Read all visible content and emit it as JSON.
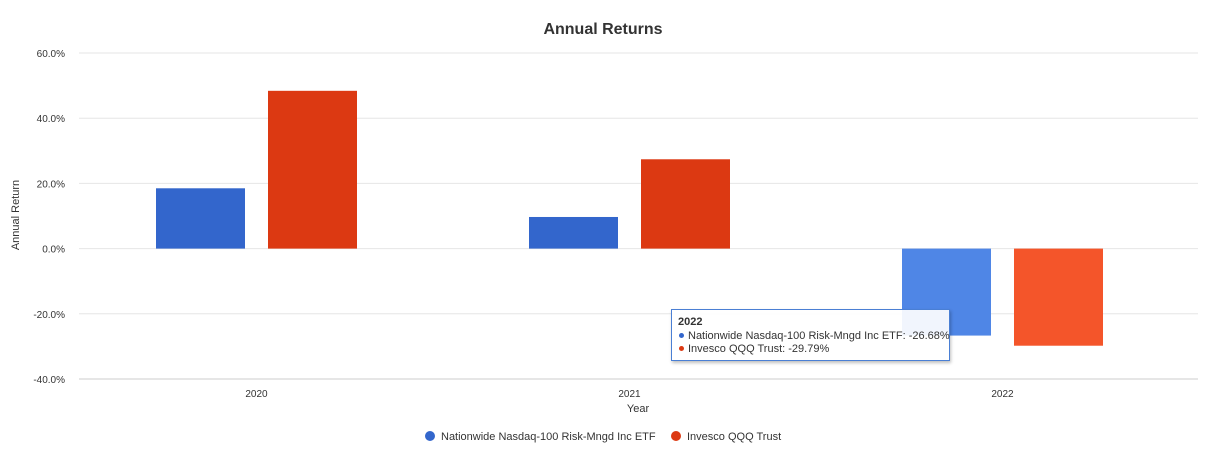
{
  "chart_data": {
    "type": "bar",
    "title": "Annual Returns",
    "xlabel": "Year",
    "ylabel": "Annual Return",
    "categories": [
      "2020",
      "2021",
      "2022"
    ],
    "ylim": [
      -40,
      60
    ],
    "yticks": [
      60,
      40,
      20,
      0,
      -20,
      -40
    ],
    "ytick_labels": [
      "60.0%",
      "40.0%",
      "20.0%",
      "0.0%",
      "-20.0%",
      "-40.0%"
    ],
    "grid": true,
    "legend_position": "bottom-center",
    "series": [
      {
        "name": "Nationwide Nasdaq-100 Risk-Mngd Inc ETF",
        "values": [
          18.5,
          9.7,
          -26.68
        ],
        "color": "#3366cc",
        "highlight_color": "#4f86e6"
      },
      {
        "name": "Invesco QQQ Trust",
        "values": [
          48.4,
          27.4,
          -29.79
        ],
        "color": "#dc3912",
        "highlight_color": "#f4552a"
      }
    ],
    "highlighted_category": "2022",
    "tooltip": {
      "title": "2022",
      "rows": [
        "Nationwide Nasdaq-100 Risk-Mngd Inc ETF: -26.68%",
        "Invesco QQQ Trust: -29.79%"
      ]
    }
  }
}
